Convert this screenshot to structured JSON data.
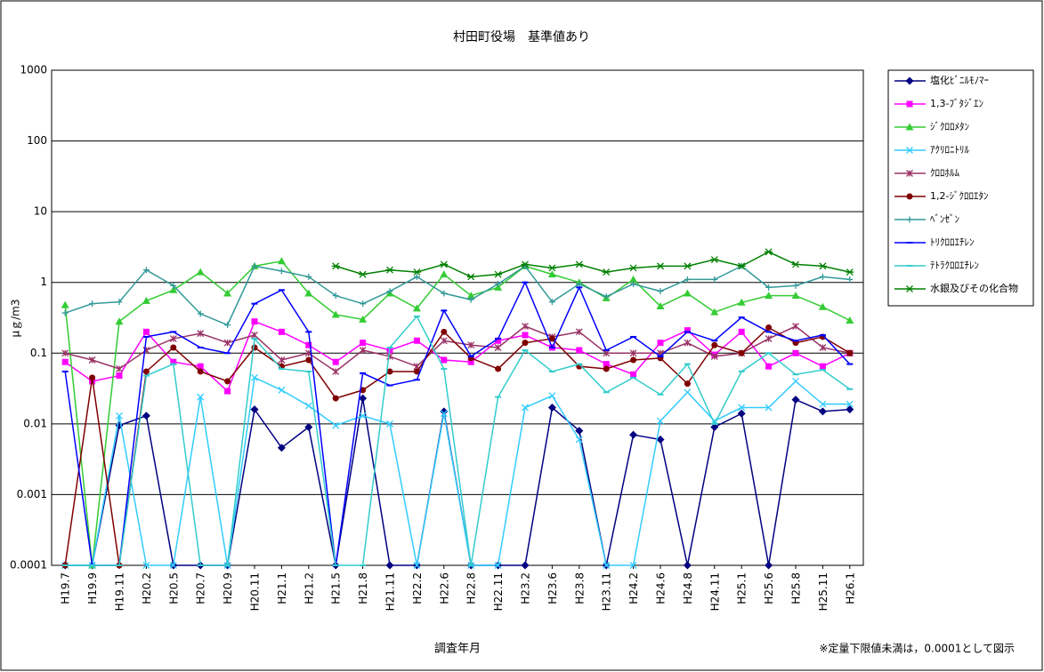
{
  "chart_data": {
    "type": "line",
    "title": "村田町役場　基準値あり",
    "ylabel": "μｇ/m3",
    "xlabel": "調査年月",
    "note": "※定量下限値未満は，0.0001として図示",
    "yscale": "log",
    "ylim": [
      0.0001,
      1000
    ],
    "yticks": [
      0.0001,
      0.001,
      0.01,
      0.1,
      1,
      10,
      100,
      1000
    ],
    "grid": true,
    "legend": "right",
    "categories": [
      "H19.7",
      "H19.9",
      "H19.11",
      "H20.2",
      "H20.5",
      "H20.7",
      "H20.9",
      "H20.11",
      "H21.1",
      "H21.2",
      "H21.5",
      "H21.8",
      "H21.11",
      "H22.2",
      "H22.6",
      "H22.8",
      "H22.11",
      "H23.2",
      "H23.6",
      "H23.8",
      "H23.11",
      "H24.2",
      "H24.6",
      "H24.8",
      "H24.11",
      "H25.1",
      "H25.6",
      "H25.8",
      "H25.11",
      "H26.1"
    ],
    "series": [
      {
        "name": "塩化ﾋﾞﾆﾙﾓﾉﾏｰ",
        "color": "#000080",
        "marker": "diamond",
        "values": [
          0.0001,
          0.0001,
          0.0095,
          0.013,
          0.0001,
          0.0001,
          0.0001,
          0.016,
          0.0046,
          0.009,
          0.0001,
          0.023,
          0.0001,
          0.0001,
          0.015,
          0.0001,
          0.0001,
          0.0001,
          0.017,
          0.008,
          0.0001,
          0.007,
          0.006,
          0.0001,
          0.009,
          0.014,
          0.0001,
          0.022,
          0.015,
          0.016
        ]
      },
      {
        "name": "1,3-ﾌﾞﾀｼﾞｴﾝ",
        "color": "#ff00ff",
        "marker": "square",
        "values": [
          0.075,
          0.04,
          0.048,
          0.2,
          0.075,
          0.065,
          0.029,
          0.28,
          0.2,
          0.13,
          0.075,
          0.14,
          0.11,
          0.15,
          0.08,
          0.075,
          0.15,
          0.18,
          0.12,
          0.11,
          0.07,
          0.05,
          0.14,
          0.21,
          0.095,
          0.2,
          0.065,
          0.1,
          0.065,
          0.1
        ]
      },
      {
        "name": "ｼﾞｸﾛﾛﾒﾀﾝ",
        "color": "#33cc33",
        "marker": "triangle",
        "values": [
          0.48,
          0.0001,
          0.28,
          0.55,
          0.78,
          1.4,
          0.7,
          1.7,
          2.0,
          0.7,
          0.35,
          0.3,
          0.7,
          0.43,
          1.3,
          0.65,
          0.85,
          1.7,
          1.3,
          1.0,
          0.6,
          1.1,
          0.46,
          0.7,
          0.38,
          0.52,
          0.65,
          0.65,
          0.45,
          0.29
        ]
      },
      {
        "name": "ｱｸﾘﾛﾆﾄﾘﾙ",
        "color": "#33ccff",
        "marker": "x",
        "values": [
          0.0001,
          0.0001,
          0.013,
          0.0001,
          0.0001,
          0.024,
          0.0001,
          0.045,
          0.03,
          0.018,
          0.0095,
          0.013,
          0.01,
          0.0001,
          0.014,
          0.0001,
          0.0001,
          0.017,
          0.025,
          0.006,
          0.0001,
          0.0001,
          0.011,
          0.028,
          0.011,
          0.017,
          0.017,
          0.04,
          0.019,
          0.019
        ]
      },
      {
        "name": "ｸﾛﾛﾎﾙﾑ",
        "color": "#993366",
        "marker": "asterisk",
        "values": [
          0.1,
          0.08,
          0.06,
          0.11,
          0.16,
          0.19,
          0.14,
          0.18,
          0.08,
          0.1,
          0.055,
          0.11,
          0.09,
          0.065,
          0.15,
          0.13,
          0.12,
          0.24,
          0.17,
          0.2,
          0.1,
          0.1,
          0.1,
          0.14,
          0.09,
          0.1,
          0.16,
          0.24,
          0.12,
          0.1
        ]
      },
      {
        "name": "1,2-ｼﾞｸﾛﾛｴﾀﾝ",
        "color": "#800000",
        "marker": "circle",
        "values": [
          0.0001,
          0.045,
          0.0001,
          0.055,
          0.12,
          0.055,
          0.04,
          0.12,
          0.065,
          0.08,
          0.023,
          0.03,
          0.055,
          0.055,
          0.2,
          0.085,
          0.06,
          0.14,
          0.16,
          0.065,
          0.06,
          0.08,
          0.085,
          0.037,
          0.13,
          0.1,
          0.23,
          0.14,
          0.17,
          0.1
        ]
      },
      {
        "name": "ﾍﾞﾝｾﾞﾝ",
        "color": "#339999",
        "marker": "plus",
        "values": [
          0.37,
          0.5,
          0.53,
          1.5,
          0.9,
          0.36,
          0.25,
          1.7,
          1.45,
          1.2,
          0.65,
          0.5,
          0.75,
          1.2,
          0.7,
          0.57,
          0.95,
          1.7,
          0.53,
          0.95,
          0.63,
          0.95,
          0.75,
          1.1,
          1.1,
          1.7,
          0.85,
          0.9,
          1.2,
          1.1
        ]
      },
      {
        "name": "ﾄﾘｸﾛﾛｴﾁﾚﾝ",
        "color": "#0000ff",
        "marker": "dash",
        "values": [
          0.055,
          0.0001,
          0.0001,
          0.17,
          0.2,
          0.12,
          0.1,
          0.5,
          0.78,
          0.2,
          0.0001,
          0.052,
          0.035,
          0.042,
          0.4,
          0.09,
          0.16,
          1.0,
          0.12,
          0.85,
          0.11,
          0.17,
          0.09,
          0.2,
          0.15,
          0.32,
          0.2,
          0.15,
          0.18,
          0.07
        ]
      },
      {
        "name": "ﾃﾄﾗｸﾛﾛｴﾁﾚﾝ",
        "color": "#33cccc",
        "marker": "dash",
        "values": [
          0.0001,
          0.0001,
          0.0001,
          0.048,
          0.07,
          0.0001,
          0.0001,
          0.16,
          0.06,
          0.055,
          0.0001,
          0.0001,
          0.12,
          0.33,
          0.06,
          0.0001,
          0.024,
          0.11,
          0.055,
          0.07,
          0.028,
          0.045,
          0.026,
          0.07,
          0.01,
          0.055,
          0.1,
          0.05,
          0.058,
          0.031
        ]
      },
      {
        "name": "水銀及びその化合物",
        "color": "#008000",
        "marker": "star",
        "values": [
          null,
          null,
          null,
          null,
          null,
          null,
          null,
          null,
          null,
          null,
          1.7,
          1.3,
          1.5,
          1.4,
          1.8,
          1.2,
          1.3,
          1.8,
          1.6,
          1.8,
          1.4,
          1.6,
          1.7,
          1.7,
          2.1,
          1.7,
          2.7,
          1.8,
          1.7,
          1.4
        ]
      }
    ]
  }
}
